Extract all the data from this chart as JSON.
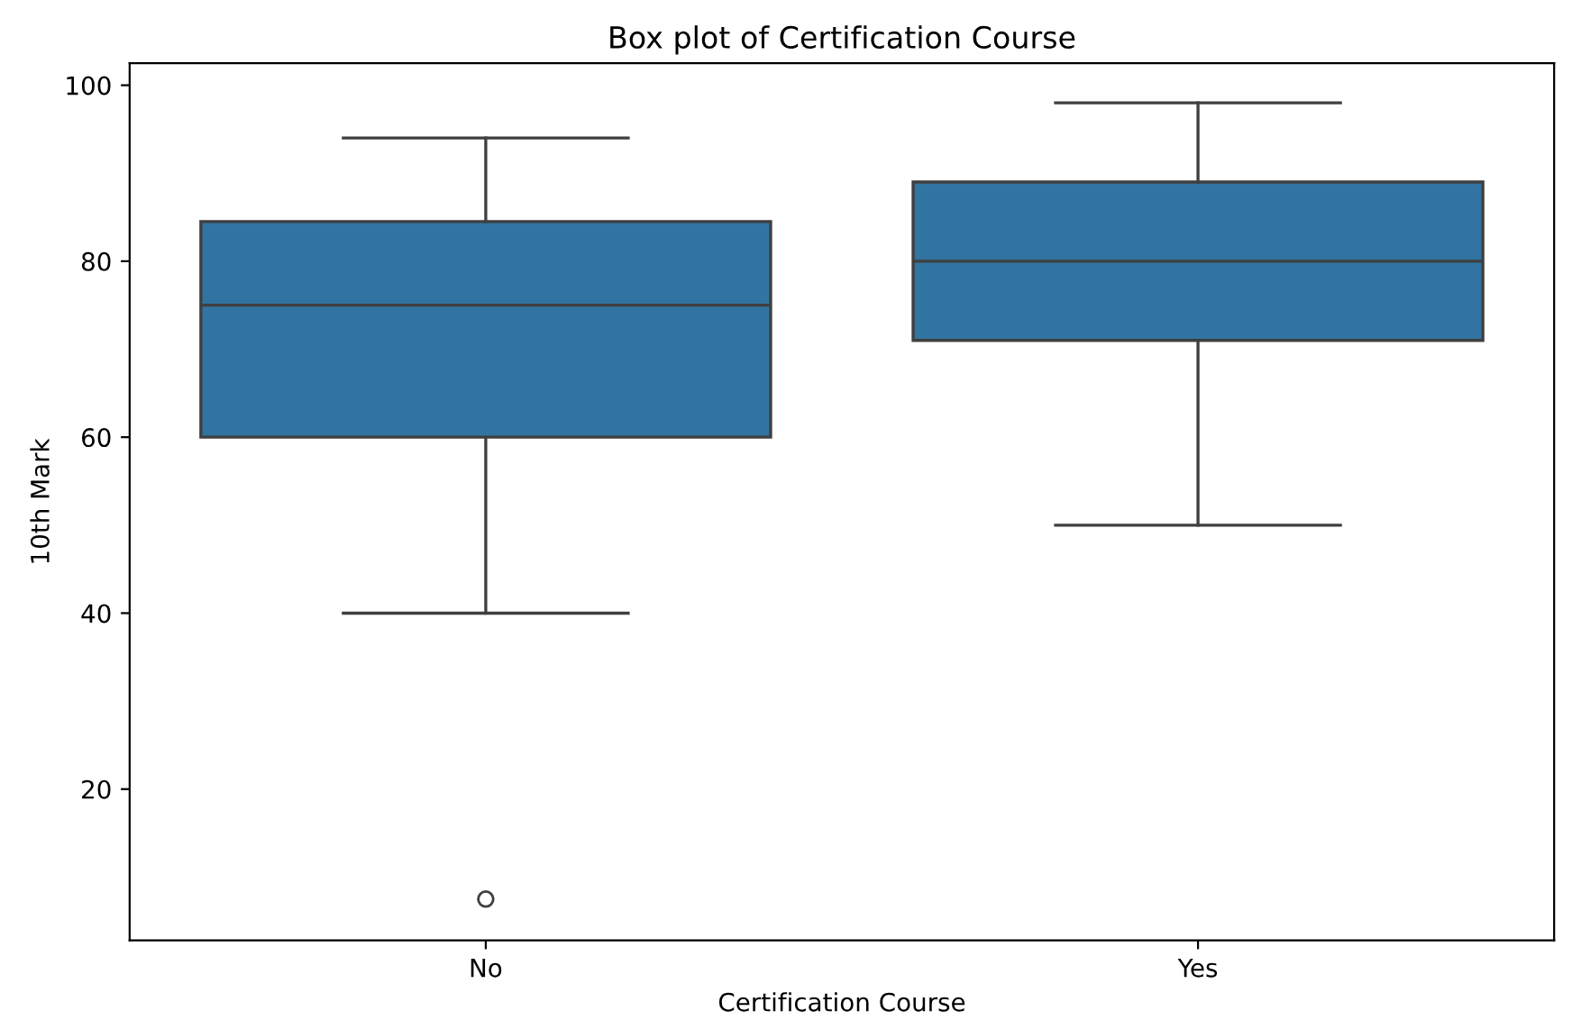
{
  "chart_data": {
    "type": "box",
    "title": "Box plot of Certification Course",
    "xlabel": "Certification Course",
    "ylabel": "10th Mark",
    "categories": [
      "No",
      "Yes"
    ],
    "series": [
      {
        "color": "#3274a1",
        "boxes": [
          {
            "low": 40,
            "q1": 60,
            "median": 75,
            "q3": 84.5,
            "high": 94,
            "outliers": [
              7.5
            ]
          },
          {
            "low": 50,
            "q1": 71,
            "median": 80,
            "q3": 89,
            "high": 98
          }
        ]
      }
    ],
    "ylim": [
      2.8,
      102.5
    ],
    "yticks": [
      20,
      40,
      60,
      80,
      100
    ],
    "grid": false
  }
}
